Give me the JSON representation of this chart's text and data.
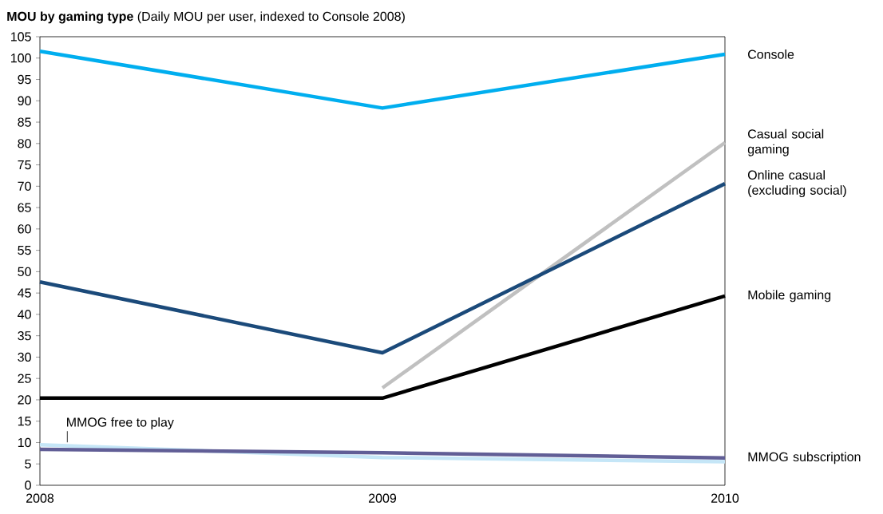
{
  "chart_data": {
    "type": "line",
    "title": "**MOU by gaming type** (Daily MOU per user, indexed to Console 2008)",
    "x": [
      2008,
      2009,
      2010
    ],
    "series": [
      {
        "name": "Console",
        "color": "#00aeef",
        "values": [
          101.6,
          88.3,
          100.9
        ]
      },
      {
        "name": "Casual social gaming",
        "color": "#c0c0c0",
        "values": [
          null,
          22.8,
          80.2
        ]
      },
      {
        "name": "Online casual (excluding social)",
        "color": "#1b4a7a",
        "values": [
          47.6,
          31.0,
          70.6
        ]
      },
      {
        "name": "Mobile gaming",
        "color": "#000000",
        "values": [
          20.4,
          20.4,
          44.3
        ]
      },
      {
        "color": "#c5e6f7",
        "values": [
          9.5,
          6.5,
          5.5
        ]
      },
      {
        "name": "MMOG subscription",
        "color": "#615e96",
        "values": [
          8.4,
          7.6,
          6.4
        ]
      }
    ],
    "annotations": [
      {
        "text": "MMOG free to play",
        "x": 2008.08,
        "y": 9.3
      }
    ],
    "xlim": [
      2008,
      2010
    ],
    "xticks": [
      2008,
      2009,
      2010
    ],
    "ylim": [
      0,
      105
    ],
    "yticks": [
      0,
      5,
      10,
      15,
      20,
      25,
      30,
      35,
      40,
      45,
      50,
      55,
      60,
      65,
      70,
      75,
      80,
      85,
      90,
      95,
      100,
      105
    ],
    "grid": false,
    "marker": "none",
    "line_style": "solid"
  }
}
